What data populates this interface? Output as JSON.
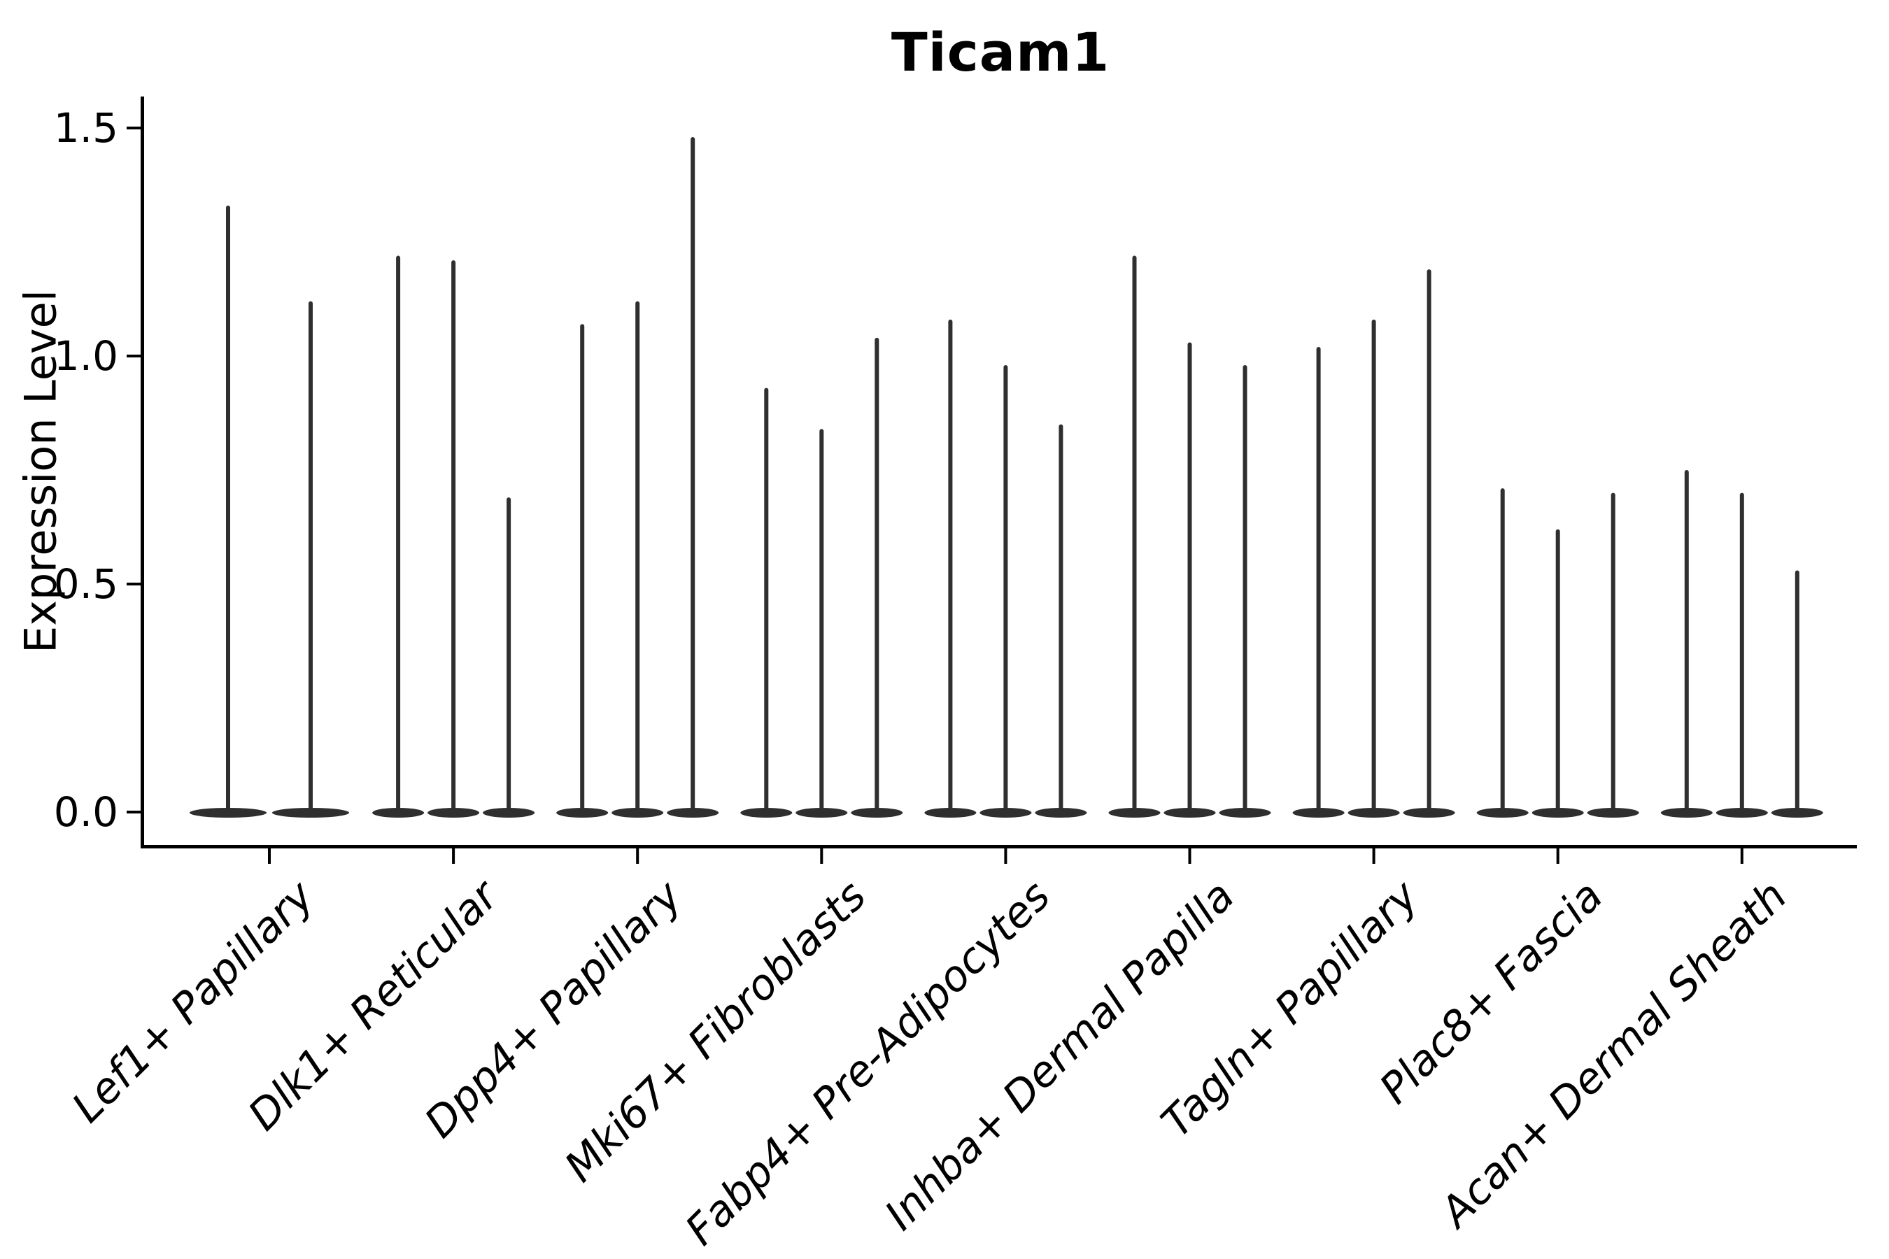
{
  "chart_data": {
    "type": "violin",
    "title": "Ticam1",
    "ylabel": "Expression Level",
    "xlabel": "",
    "yticks": [
      "0.0",
      "0.5",
      "1.0",
      "1.5"
    ],
    "ytick_values": [
      0.0,
      0.5,
      1.0,
      1.5
    ],
    "ylim": [
      -0.08,
      1.57
    ],
    "grid": false,
    "legend_position": "none",
    "notes": "Single-cell expression violin plot; each category shows 2-3 very thin violins whose density mass sits at 0 (flat dark base bar) with a narrow spike rising to the maximum expression value.",
    "violin_color": "#2f2f2f",
    "axis_color": "#000000",
    "categories": [
      "Lef1+ Papillary",
      "Dlk1+ Reticular",
      "Dpp4+ Papillary",
      "Mki67+ Fibroblasts",
      "Fabp4+ Pre-Adipocytes",
      "Inhba+ Dermal Papilla",
      "Tagln+ Papillary",
      "Plac8+ Fascia",
      "Acan+ Dermal Sheath"
    ],
    "violin_maxima": [
      [
        1.33,
        1.12
      ],
      [
        1.22,
        1.21,
        0.69
      ],
      [
        1.07,
        1.12,
        1.48
      ],
      [
        0.93,
        0.84,
        1.04
      ],
      [
        1.08,
        0.98,
        0.85
      ],
      [
        1.22,
        1.03,
        0.98
      ],
      [
        1.02,
        1.08,
        1.19
      ],
      [
        0.71,
        0.62,
        0.7
      ],
      [
        0.75,
        0.7,
        0.53
      ]
    ]
  }
}
